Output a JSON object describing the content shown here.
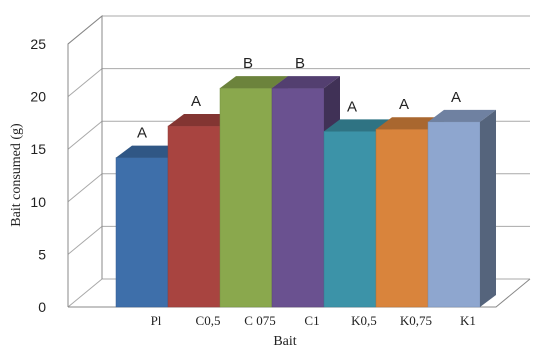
{
  "chart_data": {
    "type": "bar",
    "style": "3d",
    "title": "",
    "xlabel": "Bait",
    "ylabel": "Bait consumed (g)",
    "ylim": [
      0,
      25
    ],
    "yticks": [
      0,
      5,
      10,
      15,
      20,
      25
    ],
    "grid": true,
    "legend": "none",
    "categories": [
      "Pl",
      "C0,5",
      "C 075",
      "C1",
      "K0,5",
      "K0,75",
      "K1"
    ],
    "values": [
      14.2,
      17.2,
      20.8,
      20.8,
      16.7,
      16.9,
      17.6
    ],
    "significance_labels": [
      "A",
      "A",
      "B",
      "B",
      "A",
      "A",
      "A"
    ],
    "colors": [
      "#3e6faa",
      "#a84440",
      "#8aa84d",
      "#6a5190",
      "#3c93a8",
      "#d9843c",
      "#8ea6cf"
    ]
  }
}
